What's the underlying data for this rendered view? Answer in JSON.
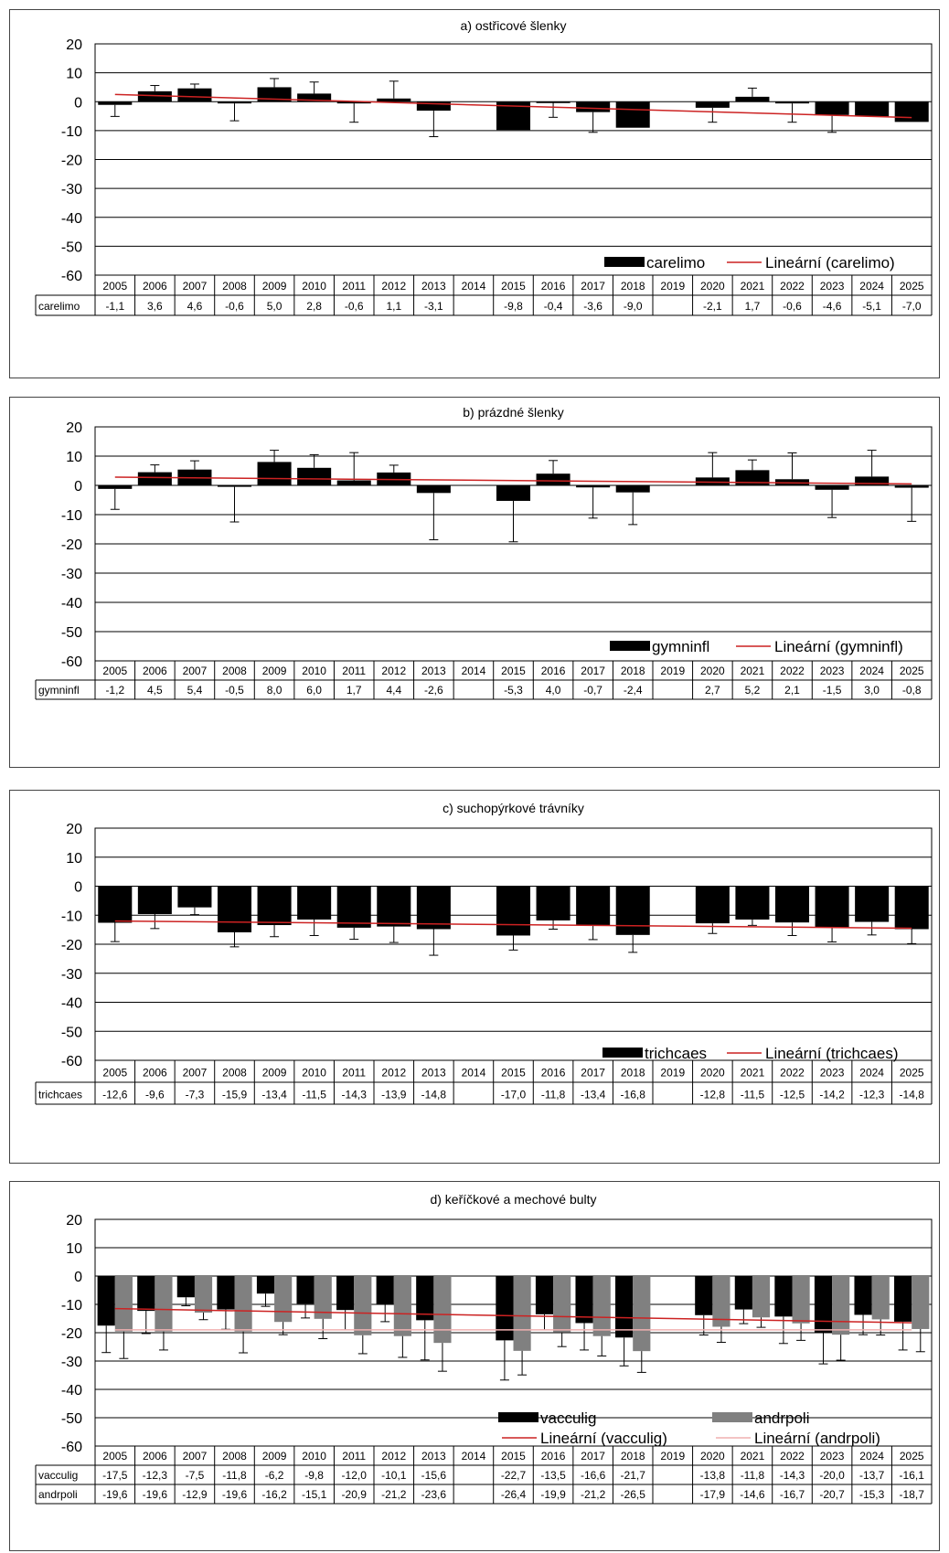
{
  "years": [
    "2005",
    "2006",
    "2007",
    "2008",
    "2009",
    "2010",
    "2011",
    "2012",
    "2013",
    "2014",
    "2015",
    "2016",
    "2017",
    "2018",
    "2019",
    "2020",
    "2021",
    "2022",
    "2023",
    "2024",
    "2025"
  ],
  "chart_data": [
    {
      "type": "bar",
      "title": "a) ostřicové šlenky",
      "ylim": [
        -60,
        20
      ],
      "yticks": [
        20,
        10,
        0,
        -10,
        -20,
        -30,
        -40,
        -50,
        -60
      ],
      "series": [
        {
          "name": "carelimo",
          "color": "#000000",
          "values": [
            -1.1,
            3.6,
            4.6,
            -0.6,
            5.0,
            2.8,
            -0.6,
            1.1,
            -3.1,
            null,
            -9.8,
            -0.4,
            -3.6,
            -9.0,
            null,
            -2.1,
            1.7,
            -0.6,
            -4.6,
            -5.1,
            -7.0
          ],
          "labels": [
            "-1,1",
            "3,6",
            "4,6",
            "-0,6",
            "5,0",
            "2,8",
            "-0,6",
            "1,1",
            "-3,1",
            "",
            "-9,8",
            "-0,4",
            "-3,6",
            "-9,0",
            "",
            "-2,1",
            "1,7",
            "-0,6",
            "-4,6",
            "-5,1",
            "-7,0"
          ],
          "errors": [
            4,
            2,
            1.5,
            6,
            3,
            4,
            6.5,
            6,
            9,
            null,
            0,
            5,
            7,
            0,
            null,
            5,
            3,
            6.5,
            6,
            0,
            0
          ]
        }
      ],
      "trend": [
        {
          "name": "Lineární (carelimo)",
          "color": "#cc2222",
          "start": 2.5,
          "end": -5.5
        }
      ]
    },
    {
      "type": "bar",
      "title": "b) prázdné šlenky",
      "ylim": [
        -60,
        20
      ],
      "yticks": [
        20,
        10,
        0,
        -10,
        -20,
        -30,
        -40,
        -50,
        -60
      ],
      "series": [
        {
          "name": "gymninfl",
          "color": "#000000",
          "values": [
            -1.2,
            4.5,
            5.4,
            -0.5,
            8.0,
            6.0,
            1.7,
            4.4,
            -2.6,
            null,
            -5.3,
            4.0,
            -0.7,
            -2.4,
            null,
            2.7,
            5.2,
            2.1,
            -1.5,
            3.0,
            -0.8
          ],
          "labels": [
            "-1,2",
            "4,5",
            "5,4",
            "-0,5",
            "8,0",
            "6,0",
            "1,7",
            "4,4",
            "-2,6",
            "",
            "-5,3",
            "4,0",
            "-0,7",
            "-2,4",
            "",
            "2,7",
            "5,2",
            "2,1",
            "-1,5",
            "3,0",
            "-0,8"
          ],
          "errors": [
            7,
            2.5,
            3,
            12,
            4,
            4.5,
            9.5,
            2.5,
            16,
            null,
            14,
            4.5,
            10.5,
            11,
            null,
            8.5,
            3.5,
            9,
            9.5,
            9,
            11.5
          ]
        }
      ],
      "trend": [
        {
          "name": "Lineární (gymninfl)",
          "color": "#cc2222",
          "start": 2.8,
          "end": 0.5
        }
      ]
    },
    {
      "type": "bar",
      "title": "c) suchopýrkové trávníky",
      "ylim": [
        -60,
        20
      ],
      "yticks": [
        20,
        10,
        0,
        -10,
        -20,
        -30,
        -40,
        -50,
        -60
      ],
      "series": [
        {
          "name": "trichcaes",
          "color": "#000000",
          "values": [
            -12.6,
            -9.6,
            -7.3,
            -15.9,
            -13.4,
            -11.5,
            -14.3,
            -13.9,
            -14.8,
            null,
            -17.0,
            -11.8,
            -13.4,
            -16.8,
            null,
            -12.8,
            -11.5,
            -12.5,
            -14.2,
            -12.3,
            -14.8
          ],
          "labels": [
            "-12,6",
            "-9,6",
            "-7,3",
            "-15,9",
            "-13,4",
            "-11,5",
            "-14,3",
            "-13,9",
            "-14,8",
            "",
            "-17,0",
            "-11,8",
            "-13,4",
            "-16,8",
            "",
            "-12,8",
            "-11,5",
            "-12,5",
            "-14,2",
            "-12,3",
            "-14,8"
          ],
          "errors": [
            6.5,
            5,
            2.5,
            5,
            4,
            5.5,
            4,
            5.5,
            9,
            null,
            5,
            3,
            5,
            6,
            null,
            3.5,
            2,
            4.5,
            5,
            4.5,
            5
          ]
        }
      ],
      "trend": [
        {
          "name": "Lineární (trichcaes)",
          "color": "#cc2222",
          "start": -12.0,
          "end": -14.5
        }
      ]
    },
    {
      "type": "bar",
      "title": "d) keříčkové a mechové bulty",
      "ylim": [
        -60,
        20
      ],
      "yticks": [
        20,
        10,
        0,
        -10,
        -20,
        -30,
        -40,
        -50,
        -60
      ],
      "series": [
        {
          "name": "vacculig",
          "color": "#000000",
          "values": [
            -17.5,
            -12.3,
            -7.5,
            -11.8,
            -6.2,
            -9.8,
            -12.0,
            -10.1,
            -15.6,
            null,
            -22.7,
            -13.5,
            -16.6,
            -21.7,
            null,
            -13.8,
            -11.8,
            -14.3,
            -20.0,
            -13.7,
            -16.1
          ],
          "labels": [
            "-17,5",
            "-12,3",
            "-7,5",
            "-11,8",
            "-6,2",
            "-9,8",
            "-12,0",
            "-10,1",
            "-15,6",
            "",
            "-22,7",
            "-13,5",
            "-16,6",
            "-21,7",
            "",
            "-13,8",
            "-11,8",
            "-14,3",
            "-20,0",
            "-13,7",
            "-16,1"
          ],
          "errors": [
            9.5,
            8,
            3,
            7,
            4.5,
            5,
            7,
            6,
            14,
            null,
            14,
            5.5,
            9.5,
            10,
            null,
            7,
            5,
            9.5,
            11,
            7,
            10
          ]
        },
        {
          "name": "andrpoli",
          "color": "#808080",
          "values": [
            -19.6,
            -19.6,
            -12.9,
            -19.6,
            -16.2,
            -15.1,
            -20.9,
            -21.2,
            -23.6,
            null,
            -26.4,
            -19.9,
            -21.2,
            -26.5,
            null,
            -17.9,
            -14.6,
            -16.7,
            -20.7,
            -15.3,
            -18.7
          ],
          "labels": [
            "-19,6",
            "-19,6",
            "-12,9",
            "-19,6",
            "-16,2",
            "-15,1",
            "-20,9",
            "-21,2",
            "-23,6",
            "",
            "-26,4",
            "-19,9",
            "-21,2",
            "-26,5",
            "",
            "-17,9",
            "-14,6",
            "-16,7",
            "-20,7",
            "-15,3",
            "-18,7"
          ],
          "errors": [
            9.5,
            6.5,
            2.5,
            7.5,
            4.5,
            7,
            6.5,
            7.5,
            10,
            null,
            8.5,
            5,
            7,
            7.5,
            null,
            5.5,
            3.5,
            6,
            9,
            5.5,
            8
          ]
        }
      ],
      "trend": [
        {
          "name": "Lineární (vacculig)",
          "color": "#cc2222",
          "start": -11.5,
          "end": -16.5
        },
        {
          "name": "Lineární (andrpoli)",
          "color": "#f0b0b0",
          "start": -19.0,
          "end": -19.0
        }
      ]
    }
  ]
}
